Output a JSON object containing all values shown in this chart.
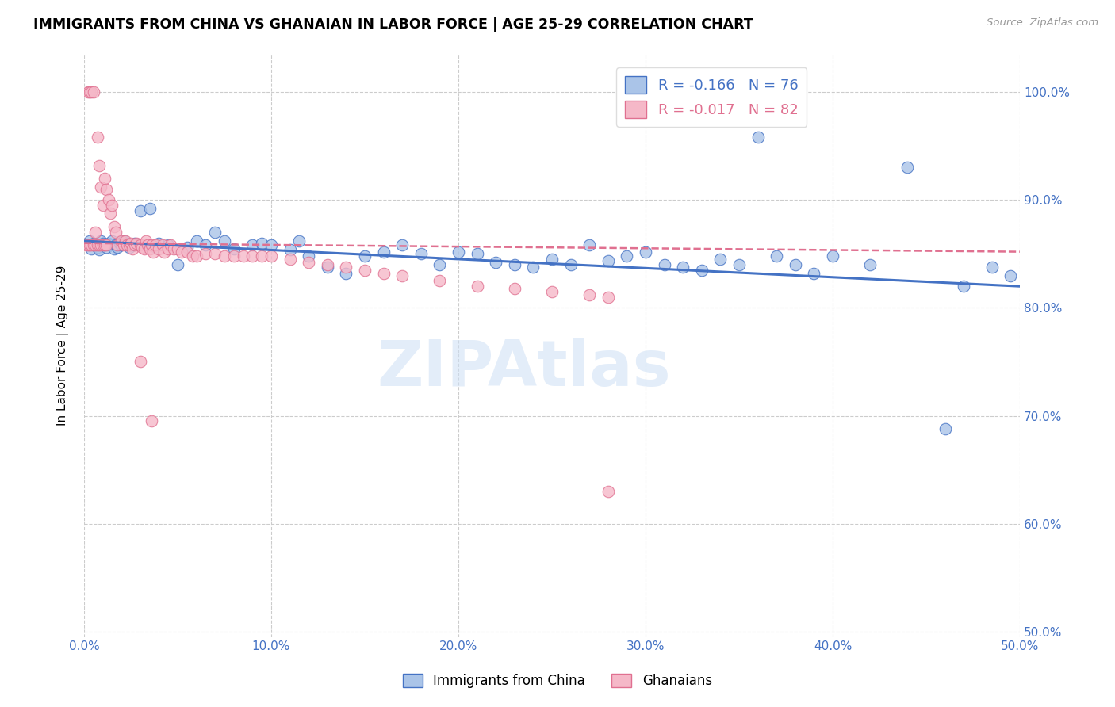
{
  "title": "IMMIGRANTS FROM CHINA VS GHANAIAN IN LABOR FORCE | AGE 25-29 CORRELATION CHART",
  "source": "Source: ZipAtlas.com",
  "ylabel": "In Labor Force | Age 25-29",
  "xlim": [
    0.0,
    0.5
  ],
  "ylim": [
    0.495,
    1.035
  ],
  "yticks": [
    0.5,
    0.6,
    0.7,
    0.8,
    0.9,
    1.0
  ],
  "xticks": [
    0.0,
    0.1,
    0.2,
    0.3,
    0.4,
    0.5
  ],
  "legend_r_china": "-0.166",
  "legend_n_china": "76",
  "legend_r_ghana": "-0.017",
  "legend_n_ghana": "82",
  "china_color": "#aac4e8",
  "ghana_color": "#f5b8c8",
  "china_line_color": "#4472C4",
  "ghana_line_color": "#E07090",
  "watermark": "ZIPAtlas",
  "china_scatter_x": [
    0.002,
    0.003,
    0.004,
    0.005,
    0.006,
    0.007,
    0.008,
    0.009,
    0.01,
    0.011,
    0.012,
    0.013,
    0.014,
    0.015,
    0.016,
    0.017,
    0.018,
    0.019,
    0.02,
    0.021,
    0.022,
    0.024,
    0.025,
    0.027,
    0.03,
    0.035,
    0.038,
    0.04,
    0.045,
    0.05,
    0.055,
    0.06,
    0.065,
    0.07,
    0.075,
    0.08,
    0.09,
    0.095,
    0.1,
    0.11,
    0.115,
    0.12,
    0.13,
    0.14,
    0.15,
    0.16,
    0.17,
    0.18,
    0.19,
    0.2,
    0.21,
    0.22,
    0.23,
    0.24,
    0.25,
    0.26,
    0.27,
    0.28,
    0.29,
    0.3,
    0.31,
    0.32,
    0.33,
    0.34,
    0.35,
    0.36,
    0.37,
    0.38,
    0.39,
    0.4,
    0.42,
    0.44,
    0.46,
    0.47,
    0.485,
    0.495
  ],
  "china_scatter_y": [
    0.858,
    0.862,
    0.855,
    0.86,
    0.858,
    0.856,
    0.854,
    0.862,
    0.86,
    0.858,
    0.856,
    0.86,
    0.858,
    0.862,
    0.855,
    0.858,
    0.856,
    0.86,
    0.858,
    0.862,
    0.86,
    0.856,
    0.858,
    0.86,
    0.89,
    0.892,
    0.856,
    0.86,
    0.858,
    0.84,
    0.856,
    0.862,
    0.858,
    0.87,
    0.862,
    0.855,
    0.858,
    0.86,
    0.858,
    0.854,
    0.862,
    0.848,
    0.838,
    0.832,
    0.848,
    0.852,
    0.858,
    0.85,
    0.84,
    0.852,
    0.85,
    0.842,
    0.84,
    0.838,
    0.845,
    0.84,
    0.858,
    0.844,
    0.848,
    0.852,
    0.84,
    0.838,
    0.835,
    0.845,
    0.84,
    0.958,
    0.848,
    0.84,
    0.832,
    0.848,
    0.84,
    0.93,
    0.688,
    0.82,
    0.838,
    0.83
  ],
  "ghana_scatter_x": [
    0.001,
    0.002,
    0.002,
    0.003,
    0.003,
    0.004,
    0.004,
    0.005,
    0.005,
    0.006,
    0.006,
    0.007,
    0.007,
    0.008,
    0.008,
    0.009,
    0.009,
    0.01,
    0.01,
    0.011,
    0.011,
    0.012,
    0.012,
    0.013,
    0.014,
    0.015,
    0.016,
    0.017,
    0.018,
    0.02,
    0.021,
    0.022,
    0.023,
    0.024,
    0.025,
    0.026,
    0.027,
    0.028,
    0.03,
    0.031,
    0.032,
    0.033,
    0.034,
    0.035,
    0.036,
    0.037,
    0.038,
    0.04,
    0.042,
    0.043,
    0.045,
    0.046,
    0.048,
    0.05,
    0.052,
    0.055,
    0.058,
    0.06,
    0.065,
    0.07,
    0.075,
    0.08,
    0.085,
    0.09,
    0.095,
    0.1,
    0.11,
    0.12,
    0.13,
    0.14,
    0.15,
    0.16,
    0.17,
    0.19,
    0.21,
    0.23,
    0.25,
    0.27,
    0.28,
    0.03,
    0.036,
    0.28
  ],
  "ghana_scatter_y": [
    0.858,
    1.0,
    0.858,
    1.0,
    0.858,
    1.0,
    0.858,
    1.0,
    0.858,
    0.87,
    0.858,
    0.958,
    0.858,
    0.858,
    0.932,
    0.858,
    0.912,
    0.858,
    0.895,
    0.858,
    0.92,
    0.858,
    0.91,
    0.9,
    0.888,
    0.895,
    0.875,
    0.87,
    0.858,
    0.862,
    0.858,
    0.862,
    0.858,
    0.858,
    0.86,
    0.855,
    0.858,
    0.86,
    0.858,
    0.856,
    0.855,
    0.862,
    0.858,
    0.855,
    0.858,
    0.852,
    0.858,
    0.855,
    0.858,
    0.852,
    0.855,
    0.858,
    0.855,
    0.855,
    0.852,
    0.852,
    0.848,
    0.848,
    0.85,
    0.85,
    0.848,
    0.848,
    0.848,
    0.848,
    0.848,
    0.848,
    0.845,
    0.842,
    0.84,
    0.838,
    0.835,
    0.832,
    0.83,
    0.825,
    0.82,
    0.818,
    0.815,
    0.812,
    0.81,
    0.75,
    0.695,
    0.63
  ]
}
